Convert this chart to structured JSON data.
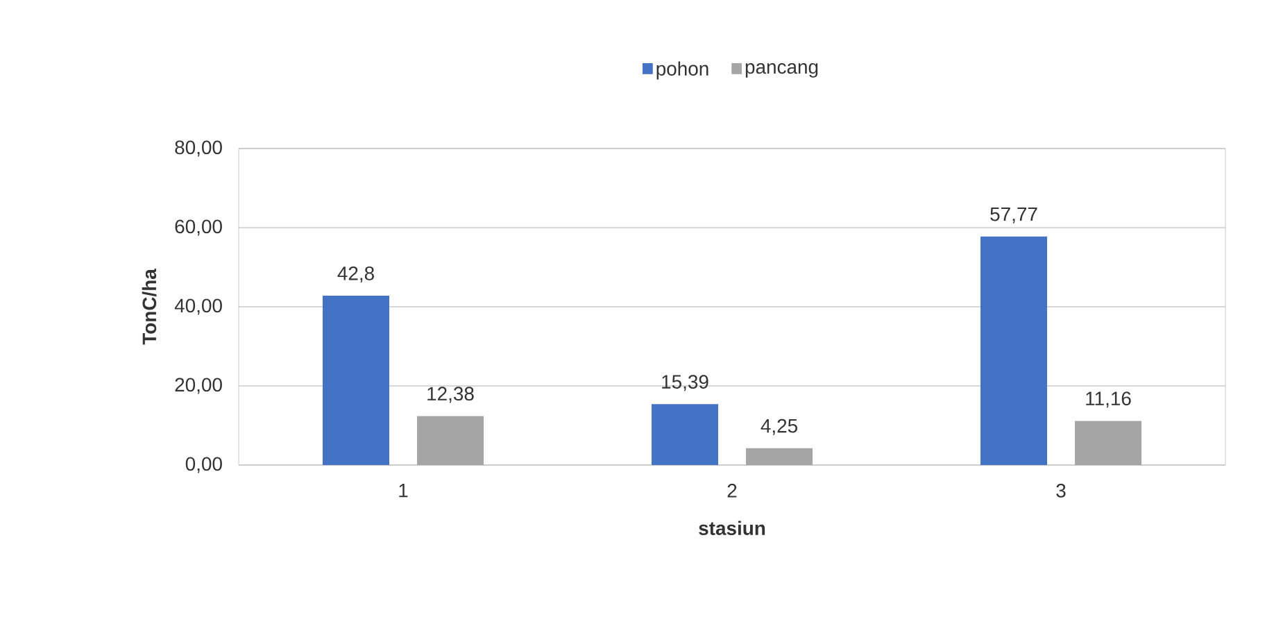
{
  "chart_data": {
    "type": "bar",
    "categories": [
      "1",
      "2",
      "3"
    ],
    "xlabel": "stasiun",
    "ylabel": "TonC/ha",
    "series": [
      {
        "name": "pohon",
        "color": "#4472c4",
        "values": [
          42.8,
          15.39,
          57.77
        ],
        "value_labels": [
          "42,8",
          "15,39",
          "57,77"
        ]
      },
      {
        "name": "pancang",
        "color": "#a5a5a5",
        "values": [
          12.38,
          4.25,
          11.16
        ],
        "value_labels": [
          "12,38",
          "4,25",
          "11,16"
        ]
      }
    ],
    "ylim": [
      0,
      80
    ],
    "yticks": [
      {
        "value": 0,
        "label": "0,00"
      },
      {
        "value": 20,
        "label": "20,00"
      },
      {
        "value": 40,
        "label": "40,00"
      },
      {
        "value": 60,
        "label": "60,00"
      },
      {
        "value": 80,
        "label": "80,00"
      }
    ],
    "grid": "y",
    "legend": "top"
  }
}
